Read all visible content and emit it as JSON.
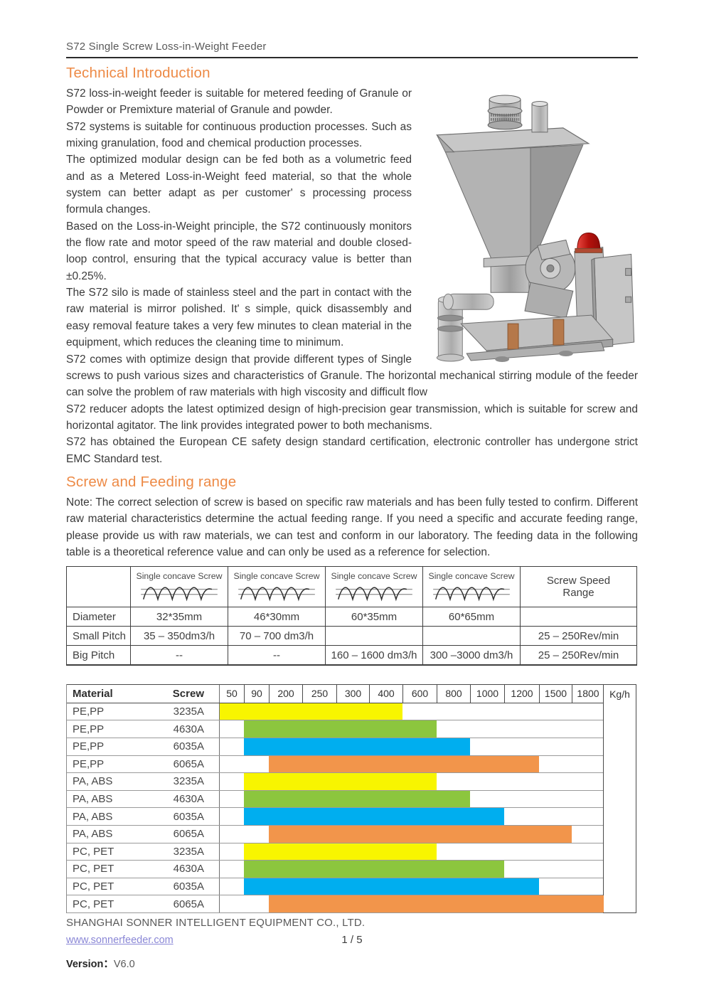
{
  "header": {
    "title": "S72 Single Screw Loss-in-Weight Feeder"
  },
  "tech_intro": {
    "heading": "Technical Introduction",
    "paragraphs": [
      "S72 loss-in-weight feeder is suitable for metered feeding of Granule or Powder or Premixture material of Granule and powder.",
      "S72 systems is suitable for continuous production processes. Such as mixing granulation, food and chemical production processes.",
      "The optimized modular design can be fed both as a volumetric feed and as a Metered Loss-in-Weight feed material, so that the whole system can better adapt as per customer' s processing process formula changes.",
      "Based on the Loss-in-Weight principle, the S72 continuously monitors the flow rate and motor speed of the raw material and double closed-loop control, ensuring that the typical accuracy value is better than ±0.25%.",
      "The S72 silo is made of stainless steel and the part in contact with the raw material is mirror polished. It' s simple, quick disassembly and easy removal feature takes a very few minutes to clean material in the equipment, which reduces the cleaning time to minimum.",
      "S72 comes with optimize design that provide different types of Single screws to push various sizes and characteristics of Granule. The horizontal mechanical stirring module of the feeder can solve the problem of raw materials with high viscosity and difficult flow",
      "S72 reducer adopts the latest optimized design of high-precision gear transmission, which is suitable for screw and horizontal agitator. The link provides integrated power to both mechanisms.",
      "S72 has obtained the European CE safety design standard certification, electronic controller has undergone strict EMC Standard test."
    ]
  },
  "screw_section": {
    "heading": "Screw and Feeding range",
    "note": "Note: The correct selection of screw is based on specific raw materials and has been fully tested to confirm. Different raw material characteristics determine the actual feeding range. If you need a specific and accurate feeding range, please provide us with raw materials, we can test and conform in our laboratory. The feeding data in the following table is a theoretical reference value and can only be used as a reference for selection."
  },
  "screw_table": {
    "header_label": "Single concave Screw",
    "speed_line1": "Screw Speed",
    "speed_line2": "Range",
    "rows": [
      {
        "label": "Diameter",
        "cells": [
          "32*35mm",
          "46*30mm",
          "60*35mm",
          "60*65mm",
          ""
        ]
      },
      {
        "label": "Small Pitch",
        "cells": [
          "35 – 350dm3/h",
          "70 – 700 dm3/h",
          "",
          "",
          "25 – 250Rev/min"
        ]
      },
      {
        "label": "Big Pitch",
        "cells": [
          "--",
          "--",
          "160 – 1600 dm3/h",
          "300 –3000 dm3/h",
          "25 – 250Rev/min"
        ]
      }
    ]
  },
  "chart_data": {
    "type": "bar",
    "title": "Feeding range by material and screw",
    "unit_label": "Kg/h",
    "material_header": "Material",
    "screw_header": "Screw",
    "columns": [
      50,
      90,
      200,
      250,
      300,
      400,
      600,
      800,
      1000,
      1200,
      1500,
      1800
    ],
    "bar_colors": {
      "yellow": "#F8F500",
      "green": "#8CC63E",
      "blue": "#00AEEF",
      "orange": "#F2954B"
    },
    "rows": [
      {
        "material": "PE,PP",
        "screw": "3235A",
        "color": "yellow",
        "from": 50,
        "to": 400
      },
      {
        "material": "PE,PP",
        "screw": "4630A",
        "color": "green",
        "from": 90,
        "to": 600
      },
      {
        "material": "PE,PP",
        "screw": "6035A",
        "color": "blue",
        "from": 90,
        "to": 800
      },
      {
        "material": "PE,PP",
        "screw": "6065A",
        "color": "orange",
        "from": 200,
        "to": 1200
      },
      {
        "material": "PA, ABS",
        "screw": "3235A",
        "color": "yellow",
        "from": 90,
        "to": 600
      },
      {
        "material": "PA, ABS",
        "screw": "4630A",
        "color": "green",
        "from": 90,
        "to": 800
      },
      {
        "material": "PA, ABS",
        "screw": "6035A",
        "color": "blue",
        "from": 90,
        "to": 1000
      },
      {
        "material": "PA, ABS",
        "screw": "6065A",
        "color": "orange",
        "from": 200,
        "to": 1500
      },
      {
        "material": "PC, PET",
        "screw": "3235A",
        "color": "yellow",
        "from": 90,
        "to": 600
      },
      {
        "material": "PC, PET",
        "screw": "4630A",
        "color": "green",
        "from": 90,
        "to": 1000
      },
      {
        "material": "PC, PET",
        "screw": "6035A",
        "color": "blue",
        "from": 90,
        "to": 1200
      },
      {
        "material": "PC, PET",
        "screw": "6065A",
        "color": "orange",
        "from": 200,
        "to": 1800
      }
    ]
  },
  "machine_image": {
    "name": "s72-feeder-3d-render",
    "beacon_color": "#C9201B"
  },
  "footer": {
    "company": "SHANGHAI SONNER INTELLIGENT EQUIPMENT CO., LTD.",
    "website": "www.sonnerfeeder.com",
    "page": "1 / 5",
    "version_label": "Version：",
    "version_value": "V6.0"
  },
  "accent_color": "#ED8A46"
}
